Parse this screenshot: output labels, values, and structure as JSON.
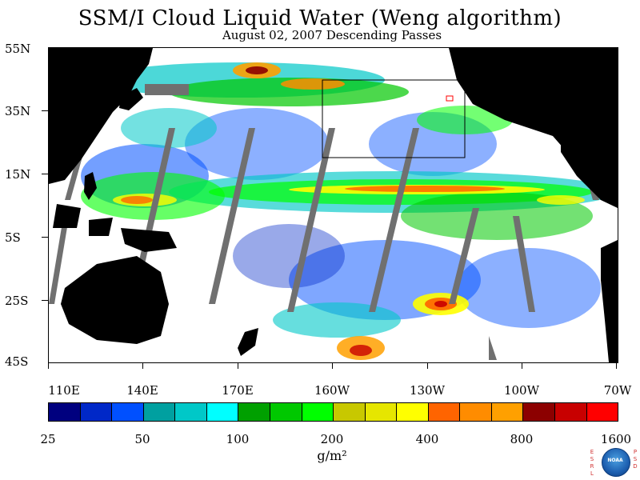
{
  "title": "SSM/I Cloud Liquid Water (Weng algorithm)",
  "subtitle": "August 02, 2007  Descending Passes",
  "latitude_labels": [
    "55N",
    "35N",
    "15N",
    "5S",
    "25S",
    "45S"
  ],
  "longitude_labels": [
    "110E",
    "140E",
    "170E",
    "160W",
    "130W",
    "100W",
    "70W"
  ],
  "colorbar": {
    "colors": [
      "#00007f",
      "#0028c8",
      "#0050ff",
      "#00a0a0",
      "#00c8c8",
      "#00ffff",
      "#00a000",
      "#00c800",
      "#00ff00",
      "#c8c800",
      "#e6e600",
      "#ffff00",
      "#ff6400",
      "#ff8c00",
      "#ffa000",
      "#8c0000",
      "#c80000",
      "#ff0000"
    ],
    "labels": [
      "25",
      "50",
      "100",
      "200",
      "400",
      "800",
      "1600"
    ],
    "units": "g/m²"
  },
  "map": {
    "lat_range": [
      -45,
      55
    ],
    "lon_range_east": [
      110,
      290
    ],
    "land_color": "#000000",
    "no_data_color": "#707070",
    "ocean_clear_color": "#ffffff"
  },
  "logo": {
    "left_letters": "ESRL",
    "right_letters": "PSD",
    "center_text": "NOAA"
  }
}
